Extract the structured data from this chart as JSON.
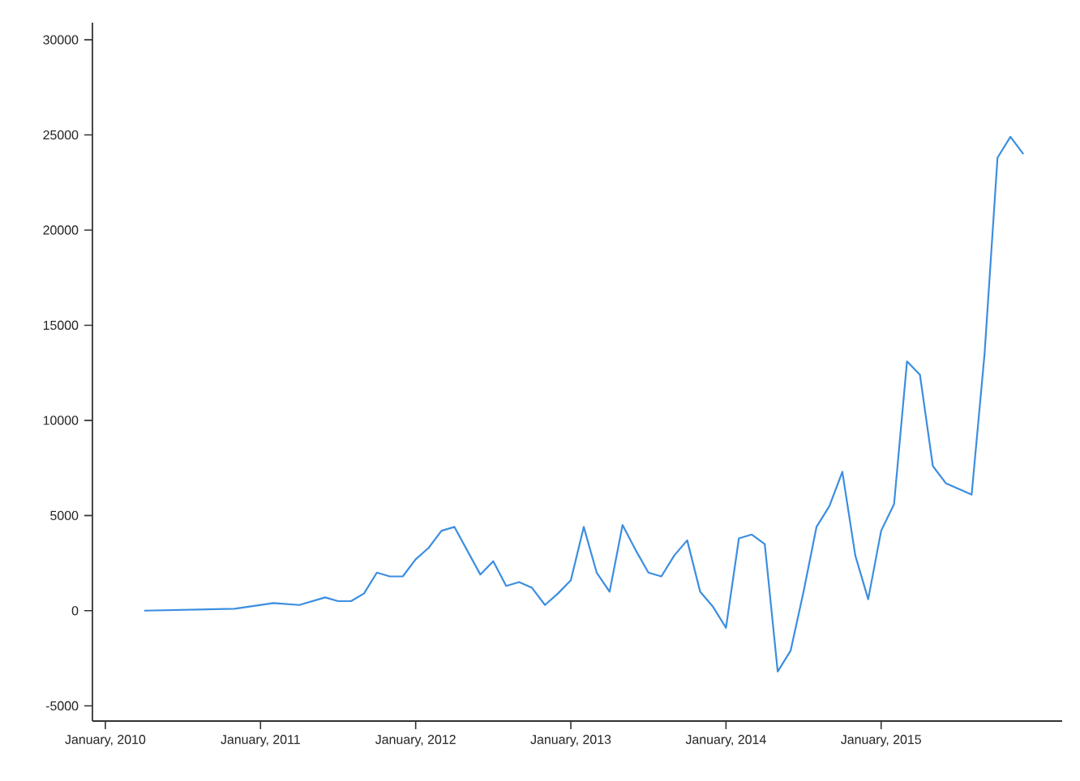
{
  "chart_data": {
    "type": "line",
    "x": [
      "2010-04",
      "2010-11",
      "2011-02",
      "2011-04",
      "2011-06",
      "2011-07",
      "2011-08",
      "2011-09",
      "2011-10",
      "2011-11",
      "2011-12",
      "2012-01",
      "2012-02",
      "2012-03",
      "2012-04",
      "2012-06",
      "2012-07",
      "2012-08",
      "2012-09",
      "2012-10",
      "2012-11",
      "2012-12",
      "2013-01",
      "2013-02",
      "2013-03",
      "2013-04",
      "2013-05",
      "2013-06",
      "2013-07",
      "2013-08",
      "2013-09",
      "2013-10",
      "2013-11",
      "2013-12",
      "2014-01",
      "2014-02",
      "2014-03",
      "2014-04",
      "2014-05",
      "2014-06",
      "2014-07",
      "2014-08",
      "2014-09",
      "2014-10",
      "2014-11",
      "2014-12",
      "2015-01",
      "2015-02",
      "2015-03",
      "2015-04",
      "2015-05",
      "2015-06",
      "2015-08",
      "2015-09",
      "2015-10",
      "2015-11",
      "2015-12"
    ],
    "values": [
      0,
      100,
      400,
      300,
      700,
      500,
      500,
      900,
      2000,
      1800,
      1800,
      2700,
      3300,
      4200,
      4400,
      1900,
      2600,
      1300,
      1500,
      1200,
      300,
      900,
      1600,
      4400,
      2000,
      1000,
      4500,
      3200,
      2000,
      1800,
      2900,
      3700,
      1000,
      200,
      -900,
      3800,
      4000,
      3500,
      -3200,
      -2100,
      1000,
      4400,
      5500,
      7300,
      2900,
      600,
      4200,
      5600,
      13100,
      12400,
      7600,
      6700,
      6100,
      13500,
      23800,
      24900,
      24000
    ],
    "color": "#3b8ee0",
    "line_style": "solid",
    "marker": "none",
    "xlim": [
      "2009-12",
      "2016-03"
    ],
    "xticks": [
      {
        "value": "2010-01",
        "label": "January, 2010"
      },
      {
        "value": "2011-01",
        "label": "January, 2011"
      },
      {
        "value": "2012-01",
        "label": "January, 2012"
      },
      {
        "value": "2013-01",
        "label": "January, 2013"
      },
      {
        "value": "2014-01",
        "label": "January, 2014"
      },
      {
        "value": "2015-01",
        "label": "January, 2015"
      }
    ],
    "ylim": [
      -5800,
      30900
    ],
    "yticks": [
      -5000,
      0,
      5000,
      10000,
      15000,
      20000,
      25000,
      30000
    ],
    "grid": false
  }
}
